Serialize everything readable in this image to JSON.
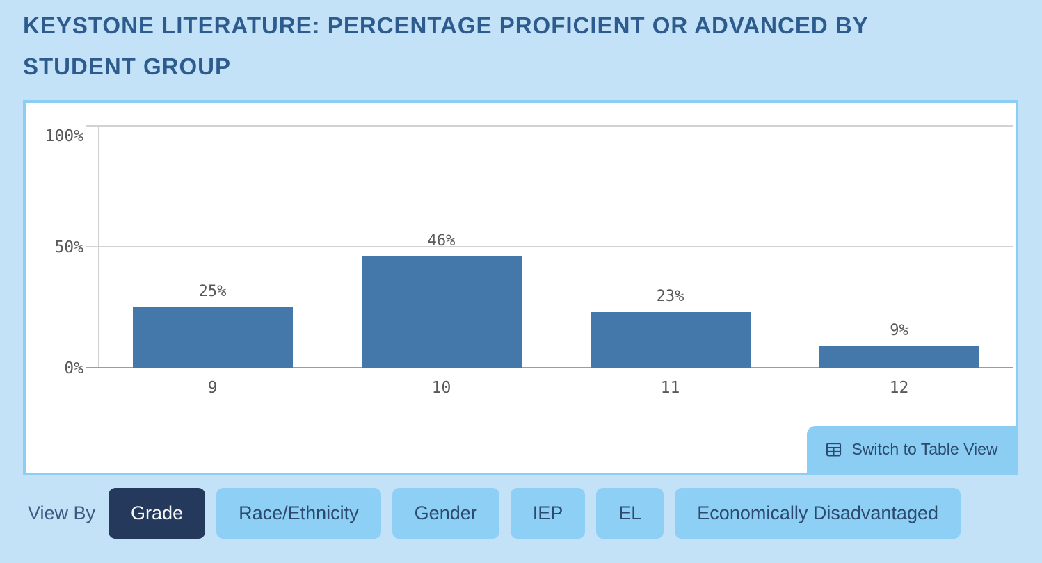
{
  "header": {
    "title": "KEYSTONE LITERATURE: PERCENTAGE PROFICIENT OR ADVANCED BY STUDENT GROUP"
  },
  "chart_data": {
    "type": "bar",
    "title": "Keystone Literature: Percentage Proficient or Advanced by Student Group",
    "view_by": "Grade",
    "categories": [
      "9",
      "10",
      "11",
      "12"
    ],
    "values": [
      25,
      46,
      23,
      9
    ],
    "value_labels": [
      "25%",
      "46%",
      "23%",
      "9%"
    ],
    "xlabel": "",
    "ylabel": "",
    "ylim": [
      0,
      100
    ],
    "yticks": [
      {
        "value": 0,
        "label": "0%"
      },
      {
        "value": 50,
        "label": "50%"
      },
      {
        "value": 100,
        "label": "100%"
      }
    ],
    "grid": true,
    "legend": "none",
    "bar_color": "#4478aa"
  },
  "panel": {
    "table_button": {
      "label": "Switch to Table View",
      "icon": "table-grid-icon"
    }
  },
  "filters": {
    "label": "View By",
    "options": [
      {
        "label": "Grade",
        "selected": true
      },
      {
        "label": "Race/Ethnicity",
        "selected": false
      },
      {
        "label": "Gender",
        "selected": false
      },
      {
        "label": "IEP",
        "selected": false
      },
      {
        "label": "EL",
        "selected": false
      },
      {
        "label": "Economically Disadvantaged",
        "selected": false
      }
    ]
  },
  "colors": {
    "page_background": "#c3e2f7",
    "title_text": "#2d5b8e",
    "panel_border": "#8ccdf3",
    "filter_bg": "#8ecff5",
    "selected_filter_bg": "#24395b",
    "button_text": "#2b4a6d",
    "viewby_text": "#3c5b80",
    "bar_fill": "#4478aa",
    "axis_text": "#58595b",
    "gridline": "#d2d2d2",
    "baseline": "#9c9c9c"
  }
}
